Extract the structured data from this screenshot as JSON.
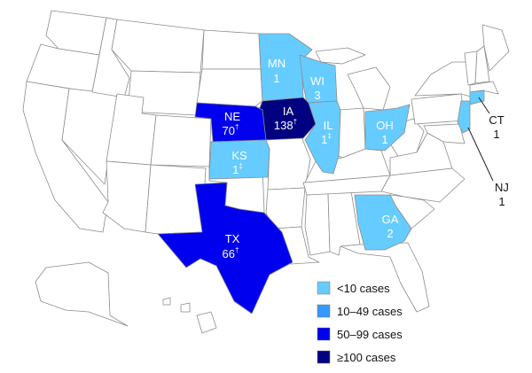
{
  "colors": {
    "none": "#ffffff",
    "lt10": "#66ccff",
    "10to49": "#3399ff",
    "50to99": "#0000ee",
    "ge100": "#000080",
    "border": "#8c8c8c"
  },
  "states": [
    {
      "abbr": "MN",
      "count": "1",
      "bin": "lt10"
    },
    {
      "abbr": "WI",
      "count": "3",
      "bin": "lt10"
    },
    {
      "abbr": "IA",
      "count": "138",
      "mark": "†",
      "bin": "ge100"
    },
    {
      "abbr": "NE",
      "count": "70",
      "mark": "†",
      "bin": "50to99"
    },
    {
      "abbr": "IL",
      "count": "1",
      "mark": "‡",
      "bin": "lt10"
    },
    {
      "abbr": "KS",
      "count": "1",
      "mark": "‡",
      "bin": "lt10"
    },
    {
      "abbr": "OH",
      "count": "1",
      "bin": "lt10"
    },
    {
      "abbr": "TX",
      "count": "66",
      "mark": "†",
      "bin": "50to99"
    },
    {
      "abbr": "GA",
      "count": "2",
      "bin": "lt10"
    },
    {
      "abbr": "CT",
      "count": "1",
      "bin": "lt10"
    },
    {
      "abbr": "NJ",
      "count": "1",
      "bin": "lt10"
    }
  ],
  "legend": [
    {
      "bin": "lt10",
      "label": "<10 cases"
    },
    {
      "bin": "10to49",
      "label": "10–49 cases"
    },
    {
      "bin": "50to99",
      "label": "50–99 cases"
    },
    {
      "bin": "ge100",
      "label": "≥100 cases"
    }
  ]
}
